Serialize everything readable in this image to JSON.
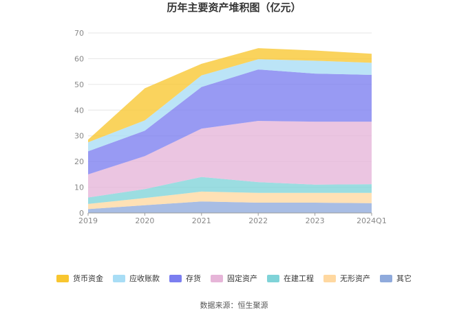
{
  "chart_data": {
    "type": "area",
    "stacked": true,
    "title": "历年主要资产堆积图（亿元）",
    "categories": [
      "2019",
      "2020",
      "2021",
      "2022",
      "2023",
      "2024Q1"
    ],
    "ylim": [
      0,
      70
    ],
    "yticks": [
      0,
      10,
      20,
      30,
      40,
      50,
      60,
      70
    ],
    "grid": true,
    "legend_position": "bottom",
    "series": [
      {
        "name": "其它",
        "color": "#8faadc",
        "values": [
          1.5,
          3.0,
          4.5,
          4.0,
          4.0,
          3.8
        ]
      },
      {
        "name": "无形资产",
        "color": "#ffd8a0",
        "values": [
          2.0,
          2.8,
          3.8,
          3.8,
          3.8,
          4.0
        ]
      },
      {
        "name": "在建工程",
        "color": "#7fd3d8",
        "values": [
          2.5,
          3.5,
          5.7,
          4.2,
          3.2,
          3.4
        ]
      },
      {
        "name": "固定资产",
        "color": "#e6b5d8",
        "values": [
          9.0,
          12.8,
          18.8,
          23.8,
          24.5,
          24.3
        ]
      },
      {
        "name": "存货",
        "color": "#7b7ef0",
        "values": [
          9.0,
          9.9,
          16.2,
          20.0,
          18.7,
          18.2
        ]
      },
      {
        "name": "应收账款",
        "color": "#a8ddf5",
        "values": [
          3.5,
          4.0,
          4.5,
          4.0,
          5.0,
          4.7
        ]
      },
      {
        "name": "货币资金",
        "color": "#f8c630",
        "values": [
          1.0,
          12.5,
          4.5,
          4.3,
          4.0,
          3.5
        ]
      }
    ],
    "legend_order": [
      "货币资金",
      "应收账款",
      "存货",
      "固定资产",
      "在建工程",
      "无形资产",
      "其它"
    ]
  },
  "source": "数据来源：恒生聚源"
}
